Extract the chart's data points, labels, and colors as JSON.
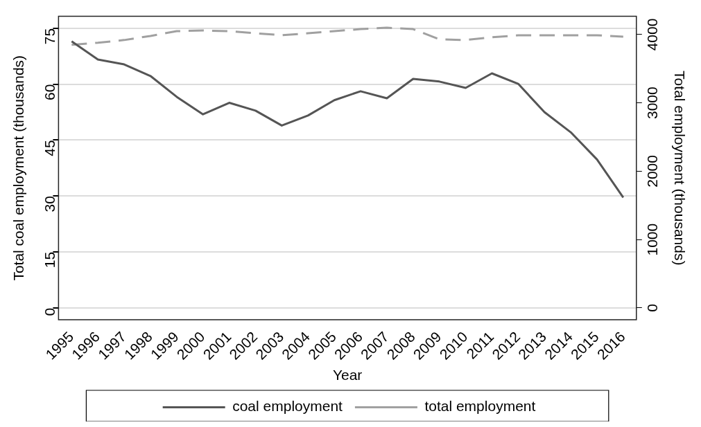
{
  "chart_data": {
    "type": "line",
    "xlabel": "Year",
    "ylabel": "Total coal employment (thousands)",
    "y2label": "Total employment (thousands)",
    "categories": [
      "1995",
      "1996",
      "1997",
      "1998",
      "1999",
      "2000",
      "2001",
      "2002",
      "2003",
      "2004",
      "2005",
      "2006",
      "2007",
      "2008",
      "2009",
      "2010",
      "2011",
      "2012",
      "2013",
      "2014",
      "2015",
      "2016"
    ],
    "series": [
      {
        "name": "coal employment",
        "color": "#555555",
        "line_style": "solid",
        "values": [
          71.5,
          66.6,
          65.3,
          62.2,
          56.6,
          51.9,
          55.0,
          52.9,
          48.9,
          51.6,
          55.7,
          58.1,
          56.2,
          61.4,
          60.7,
          59.0,
          62.9,
          60.1,
          52.5,
          47.1,
          39.8,
          29.6
        ]
      },
      {
        "name": "total employment",
        "color": "#a0a0a0",
        "line_style": "dashed",
        "axis": "y2",
        "values": [
          3850,
          3880,
          3920,
          3980,
          4050,
          4060,
          4050,
          4020,
          3990,
          4020,
          4050,
          4080,
          4100,
          4080,
          3930,
          3920,
          3960,
          3990,
          3990,
          3990,
          3990,
          3970
        ]
      }
    ],
    "ylim": [
      -3.2,
      78.2
    ],
    "yticks": [
      0,
      15,
      30,
      45,
      60,
      75
    ],
    "y2lim": [
      -173,
      4267
    ],
    "y2ticks": [
      0,
      1000,
      2000,
      3000,
      4000
    ],
    "grid": "y",
    "legend": "bottom",
    "marker": "none"
  }
}
